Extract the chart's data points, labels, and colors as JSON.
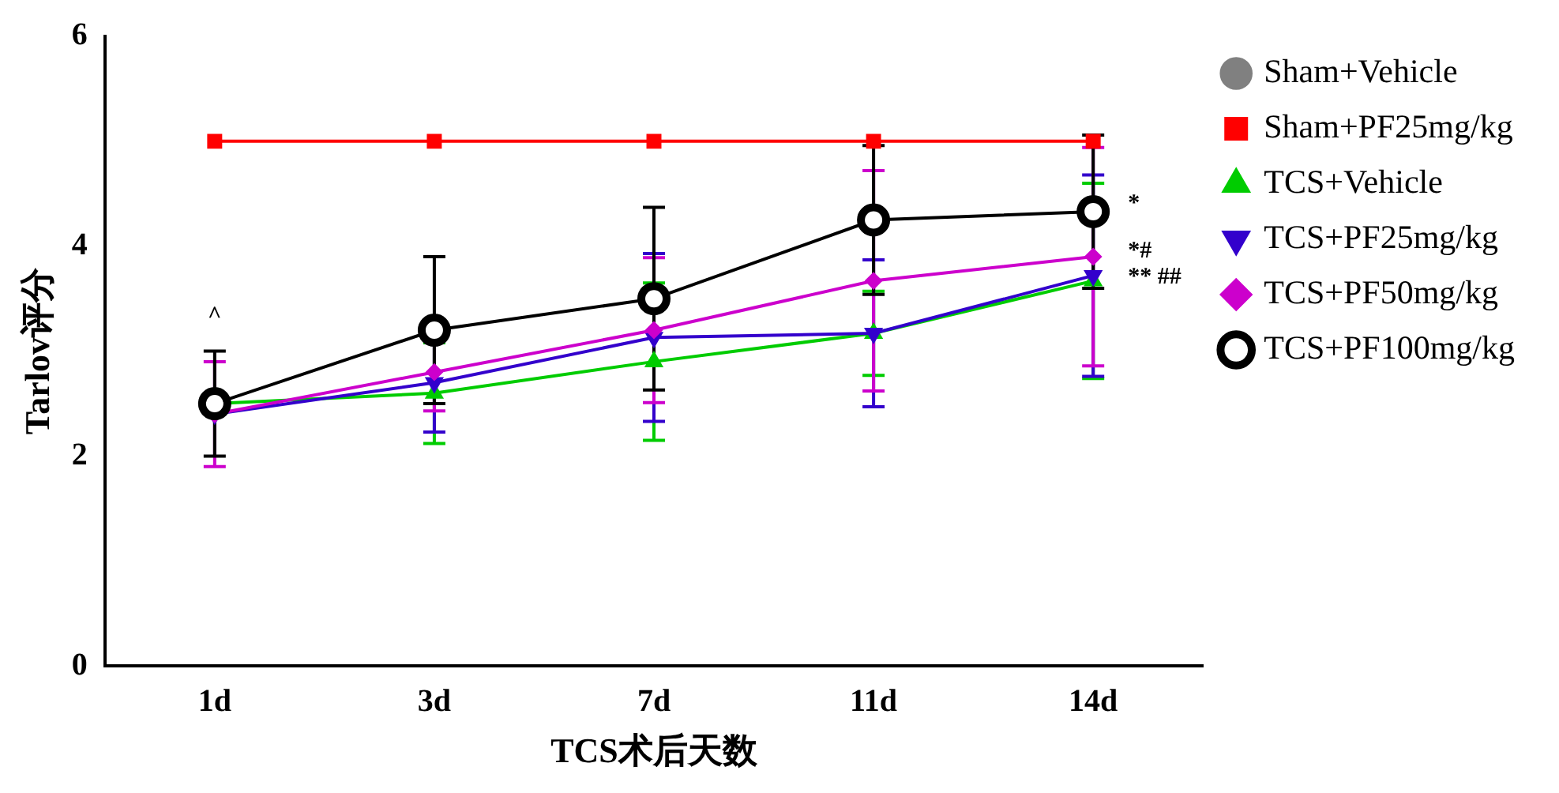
{
  "chart_data": {
    "type": "line",
    "xlabel": "TCS术后天数",
    "ylabel": "Tarlov评分",
    "categories": [
      "1d",
      "3d",
      "7d",
      "11d",
      "14d"
    ],
    "ylim": [
      0,
      6
    ],
    "yticks": [
      0,
      2,
      4,
      6
    ],
    "grid": false,
    "legend": "right",
    "series": [
      {
        "name": "Sham+Vehicle",
        "color": "#808080",
        "marker": "circle",
        "values": [
          null,
          null,
          null,
          null,
          null
        ]
      },
      {
        "name": "Sham+PF25mg/kg",
        "color": "#ff0000",
        "marker": "square",
        "values": [
          5,
          5,
          5,
          5,
          5
        ]
      },
      {
        "name": "TCS+Vehicle",
        "color": "#00cc00",
        "marker": "triangle",
        "values": [
          2.5,
          2.6,
          2.9,
          3.17,
          3.67
        ],
        "errors": [
          null,
          0.48,
          0.75,
          0.4,
          0.93
        ]
      },
      {
        "name": "TCS+PF25mg/kg",
        "color": "#3300cc",
        "marker": "triangle-down",
        "values": [
          2.4,
          2.7,
          3.13,
          3.17,
          3.72
        ],
        "errors": [
          null,
          0.47,
          0.8,
          0.7,
          0.96
        ]
      },
      {
        "name": "TCS+PF50mg/kg",
        "color": "#cc00cc",
        "marker": "diamond",
        "values": [
          2.4,
          2.8,
          3.2,
          3.67,
          3.9
        ],
        "errors": [
          0.5,
          0.37,
          0.69,
          1.05,
          1.04
        ]
      },
      {
        "name": "TCS+PF100mg/kg",
        "color": "#000000",
        "marker": "open-circle",
        "values": [
          2.5,
          3.2,
          3.5,
          4.25,
          4.33
        ],
        "errors": [
          0.5,
          0.7,
          0.87,
          0.71,
          0.73
        ]
      }
    ],
    "annotations": [
      "^",
      {
        "text": "*",
        "x": "14d",
        "y": 4.4
      },
      {
        "text": "*#",
        "x": "14d",
        "y": 3.95
      },
      {
        "text": "** ##",
        "x": "14d",
        "y": 3.7
      }
    ]
  }
}
